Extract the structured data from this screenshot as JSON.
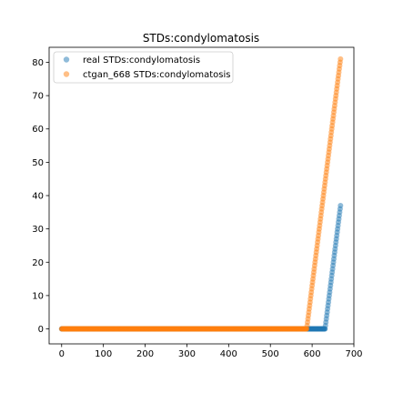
{
  "chart_data": {
    "type": "scatter",
    "title": "STDs:condylomatosis",
    "xlabel": "",
    "ylabel": "",
    "xlim": [
      -30,
      700
    ],
    "ylim": [
      -4.5,
      84.5
    ],
    "xticks": [
      0,
      100,
      200,
      300,
      400,
      500,
      600,
      700
    ],
    "yticks": [
      0,
      10,
      20,
      30,
      40,
      50,
      60,
      70,
      80
    ],
    "grid": false,
    "legend_position": "upper-left",
    "series": [
      {
        "name": "real STDs:condylomatosis",
        "color": "#1f77b4",
        "segments": [
          {
            "x_start": 0,
            "x_end": 631,
            "y": 0
          },
          {
            "x_start": 632,
            "x_end": 668,
            "y_start": 1,
            "y_step": 1
          }
        ]
      },
      {
        "name": "ctgan_668 STDs:condylomatosis",
        "color": "#ff7f0e",
        "segments": [
          {
            "x_start": 0,
            "x_end": 587,
            "y": 0
          },
          {
            "x_start": 588,
            "x_end": 668,
            "y_start": 1,
            "y_step": 1
          }
        ]
      }
    ]
  }
}
